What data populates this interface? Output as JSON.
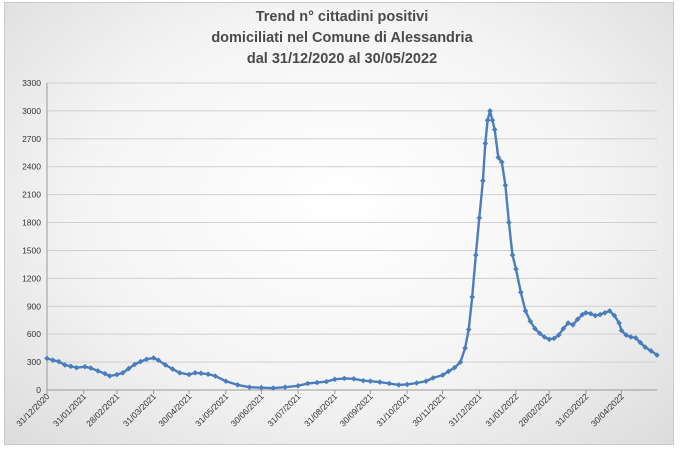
{
  "chart_data": {
    "type": "line",
    "title_lines": [
      "Trend n° cittadini positivi",
      "domiciliati nel Comune di Alessandria",
      "dal 31/12/2020 al 30/05/2022"
    ],
    "xlabel": "",
    "ylabel": "",
    "ylim": [
      0,
      3300
    ],
    "yticks": [
      0,
      300,
      600,
      900,
      1200,
      1500,
      1800,
      2100,
      2400,
      2700,
      3000,
      3300
    ],
    "xlim": [
      "2020-12-31",
      "2022-05-30"
    ],
    "xticks": [
      "31/12/2020",
      "31/01/2021",
      "28/02/2021",
      "31/03/2021",
      "30/04/2021",
      "31/05/2021",
      "30/06/2021",
      "31/07/2021",
      "31/08/2021",
      "30/09/2021",
      "31/10/2021",
      "30/11/2021",
      "31/12/2021",
      "31/01/2022",
      "28/02/2022",
      "31/03/2022",
      "30/04/2022"
    ],
    "grid": true,
    "legend": "none",
    "series": [
      {
        "color": "#4a7ebb",
        "marker": "diamond",
        "points": [
          [
            "2020-12-31",
            340
          ],
          [
            "2021-01-05",
            320
          ],
          [
            "2021-01-10",
            305
          ],
          [
            "2021-01-15",
            270
          ],
          [
            "2021-01-20",
            255
          ],
          [
            "2021-01-25",
            240
          ],
          [
            "2021-02-01",
            250
          ],
          [
            "2021-02-06",
            235
          ],
          [
            "2021-02-12",
            205
          ],
          [
            "2021-02-18",
            175
          ],
          [
            "2021-02-22",
            150
          ],
          [
            "2021-02-28",
            165
          ],
          [
            "2021-03-05",
            185
          ],
          [
            "2021-03-10",
            230
          ],
          [
            "2021-03-15",
            275
          ],
          [
            "2021-03-20",
            305
          ],
          [
            "2021-03-25",
            330
          ],
          [
            "2021-03-31",
            345
          ],
          [
            "2021-04-04",
            320
          ],
          [
            "2021-04-10",
            270
          ],
          [
            "2021-04-16",
            225
          ],
          [
            "2021-04-22",
            185
          ],
          [
            "2021-04-30",
            165
          ],
          [
            "2021-05-05",
            185
          ],
          [
            "2021-05-10",
            180
          ],
          [
            "2021-05-16",
            170
          ],
          [
            "2021-05-22",
            150
          ],
          [
            "2021-05-31",
            95
          ],
          [
            "2021-06-10",
            55
          ],
          [
            "2021-06-20",
            30
          ],
          [
            "2021-06-30",
            25
          ],
          [
            "2021-07-10",
            20
          ],
          [
            "2021-07-20",
            30
          ],
          [
            "2021-07-31",
            45
          ],
          [
            "2021-08-08",
            70
          ],
          [
            "2021-08-16",
            80
          ],
          [
            "2021-08-24",
            90
          ],
          [
            "2021-08-31",
            115
          ],
          [
            "2021-09-08",
            125
          ],
          [
            "2021-09-16",
            120
          ],
          [
            "2021-09-24",
            100
          ],
          [
            "2021-09-30",
            95
          ],
          [
            "2021-10-08",
            85
          ],
          [
            "2021-10-16",
            70
          ],
          [
            "2021-10-24",
            55
          ],
          [
            "2021-10-31",
            60
          ],
          [
            "2021-11-08",
            75
          ],
          [
            "2021-11-16",
            95
          ],
          [
            "2021-11-22",
            130
          ],
          [
            "2021-11-30",
            160
          ],
          [
            "2021-12-05",
            200
          ],
          [
            "2021-12-10",
            240
          ],
          [
            "2021-12-15",
            300
          ],
          [
            "2021-12-19",
            450
          ],
          [
            "2021-12-22",
            650
          ],
          [
            "2021-12-25",
            1000
          ],
          [
            "2021-12-28",
            1450
          ],
          [
            "2021-12-31",
            1850
          ],
          [
            "2022-01-03",
            2250
          ],
          [
            "2022-01-05",
            2650
          ],
          [
            "2022-01-07",
            2900
          ],
          [
            "2022-01-09",
            3000
          ],
          [
            "2022-01-11",
            2900
          ],
          [
            "2022-01-13",
            2800
          ],
          [
            "2022-01-16",
            2500
          ],
          [
            "2022-01-19",
            2450
          ],
          [
            "2022-01-22",
            2200
          ],
          [
            "2022-01-25",
            1800
          ],
          [
            "2022-01-28",
            1450
          ],
          [
            "2022-01-31",
            1300
          ],
          [
            "2022-02-04",
            1050
          ],
          [
            "2022-02-08",
            850
          ],
          [
            "2022-02-12",
            740
          ],
          [
            "2022-02-16",
            660
          ],
          [
            "2022-02-20",
            610
          ],
          [
            "2022-02-24",
            570
          ],
          [
            "2022-02-28",
            545
          ],
          [
            "2022-03-04",
            555
          ],
          [
            "2022-03-08",
            590
          ],
          [
            "2022-03-12",
            660
          ],
          [
            "2022-03-16",
            720
          ],
          [
            "2022-03-20",
            700
          ],
          [
            "2022-03-24",
            760
          ],
          [
            "2022-03-28",
            810
          ],
          [
            "2022-03-31",
            830
          ],
          [
            "2022-04-04",
            820
          ],
          [
            "2022-04-08",
            800
          ],
          [
            "2022-04-12",
            810
          ],
          [
            "2022-04-16",
            830
          ],
          [
            "2022-04-20",
            850
          ],
          [
            "2022-04-24",
            800
          ],
          [
            "2022-04-28",
            720
          ],
          [
            "2022-04-30",
            640
          ],
          [
            "2022-05-04",
            590
          ],
          [
            "2022-05-08",
            570
          ],
          [
            "2022-05-12",
            560
          ],
          [
            "2022-05-16",
            510
          ],
          [
            "2022-05-20",
            460
          ],
          [
            "2022-05-25",
            420
          ],
          [
            "2022-05-30",
            375
          ]
        ]
      }
    ]
  }
}
